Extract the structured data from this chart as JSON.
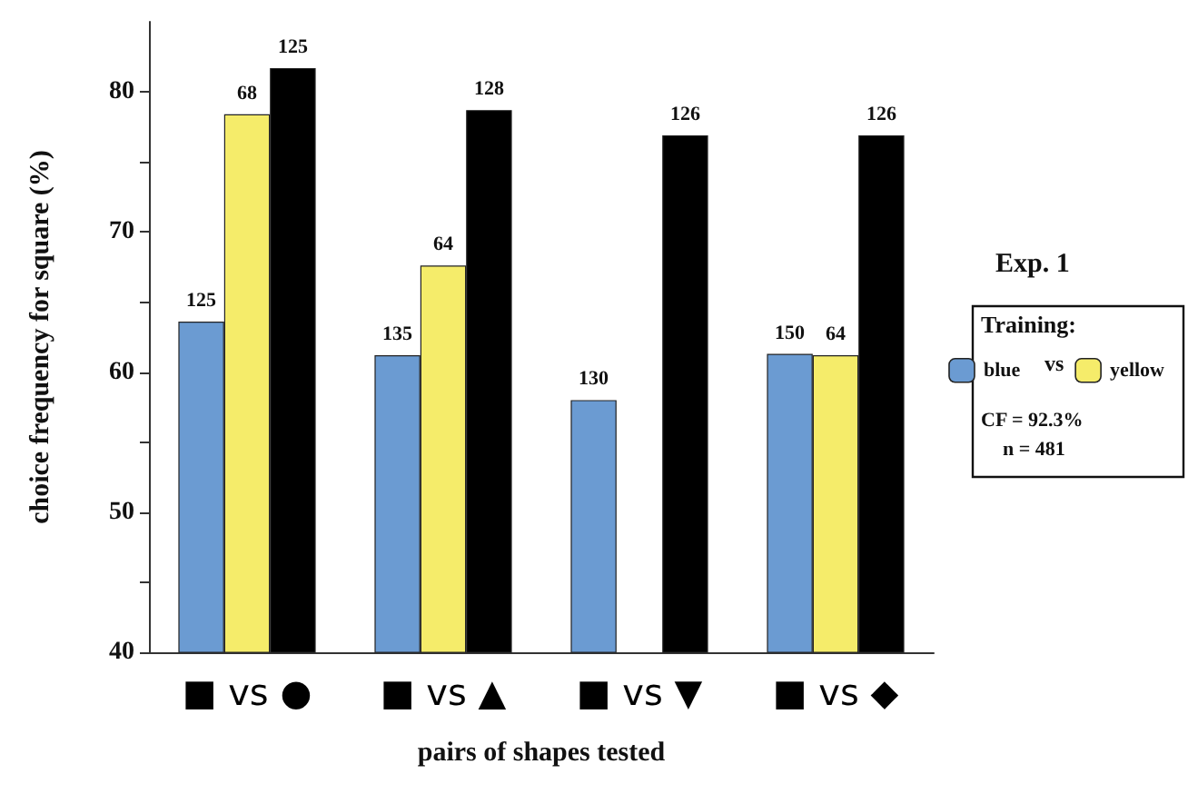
{
  "chart_data": {
    "type": "bar",
    "xlabel": "pairs of shapes tested",
    "ylabel": "choice frequency for square (%)",
    "legend_title": "Training:",
    "categories": [
      "■ vs ●",
      "■ vs ▲",
      "■ vs ▼",
      "■ vs ◆"
    ],
    "series": [
      {
        "name": "blue",
        "color": "#6b9bd2",
        "values": [
          63.6,
          61.2,
          58.0,
          61.3
        ]
      },
      {
        "name": "yellow",
        "color": "#f5ec6a",
        "values": [
          78.4,
          67.6,
          null,
          61.2
        ]
      },
      {
        "color": "#000000",
        "values": [
          81.7,
          78.7,
          76.9,
          76.9
        ]
      }
    ],
    "ylim": [
      40,
      85
    ],
    "yticks": [
      40,
      {
        "value": 45,
        "label": null
      },
      50,
      {
        "value": 55,
        "label": null
      },
      60,
      {
        "value": 65,
        "label": null
      },
      70,
      {
        "value": 75,
        "label": null
      },
      80
    ],
    "grid": false,
    "legend": "right",
    "annotations": [
      "Exp. 1",
      "vs",
      "CF = 92.3%",
      "n = 481",
      "125",
      "68",
      "125",
      "135",
      "64",
      "128",
      "130",
      "126",
      "150",
      "64",
      "126"
    ]
  }
}
